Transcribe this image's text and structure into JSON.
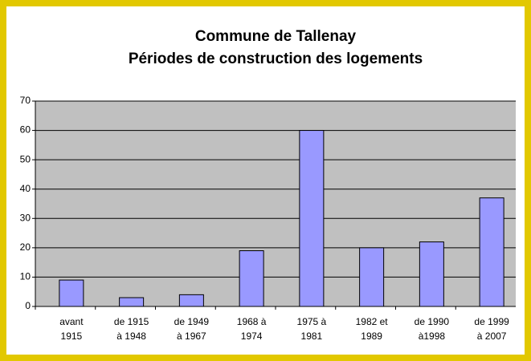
{
  "chart_data": {
    "type": "bar",
    "title": "Commune de Tallenay",
    "subtitle": "Périodes de construction des logements",
    "categories": [
      [
        "avant",
        "1915"
      ],
      [
        "de 1915",
        "à 1948"
      ],
      [
        "de 1949",
        "à 1967"
      ],
      [
        "1968 à",
        "1974"
      ],
      [
        "1975 à",
        "1981"
      ],
      [
        "1982 et",
        "1989"
      ],
      [
        "de 1990",
        "à1998"
      ],
      [
        "de 1999",
        "à 2007"
      ]
    ],
    "values": [
      9,
      3,
      4,
      19,
      60,
      20,
      22,
      37
    ],
    "color": "#9999ff",
    "ylim": [
      0,
      70
    ],
    "yticks": [
      0,
      10,
      20,
      30,
      40,
      50,
      60,
      70
    ],
    "grid": true
  }
}
